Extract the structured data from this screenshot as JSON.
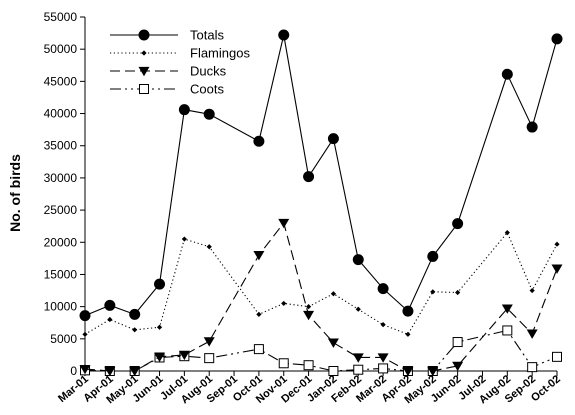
{
  "chart_data": {
    "type": "line",
    "title": "",
    "xlabel": "",
    "ylabel": "No. of birds",
    "ylim": [
      0,
      55000
    ],
    "yticks": [
      0,
      5000,
      10000,
      15000,
      20000,
      25000,
      30000,
      35000,
      40000,
      45000,
      50000,
      55000
    ],
    "grid": false,
    "legend": "top-left",
    "categories": [
      "Mar-01",
      "Apr-01",
      "May-01",
      "Jun-01",
      "Jul-01",
      "Aug-01",
      "Sep-01",
      "Oct-01",
      "Nov-01",
      "Dec-01",
      "Jan-02",
      "Feb-02",
      "Mar-02",
      "Apr-02",
      "May-02",
      "Jun-02",
      "Jul-02",
      "Aug-02",
      "Sep-02",
      "Oct-02"
    ],
    "series": [
      {
        "name": "Totals",
        "style": "solid",
        "marker": "filled-circle",
        "points": [
          [
            "Mar-01",
            8600
          ],
          [
            "Apr-01",
            10200
          ],
          [
            "May-01",
            8800
          ],
          [
            "Jun-01",
            13500
          ],
          [
            "Jul-01",
            40600
          ],
          [
            "Aug-01",
            39900
          ],
          [
            "Oct-01",
            35700
          ],
          [
            "Nov-01",
            52200
          ],
          [
            "Dec-01",
            30200
          ],
          [
            "Jan-02",
            36100
          ],
          [
            "Feb-02",
            17300
          ],
          [
            "Mar-02",
            12800
          ],
          [
            "Apr-02",
            9300
          ],
          [
            "May-02",
            17800
          ],
          [
            "Jun-02",
            22900
          ],
          [
            "Aug-02",
            46100
          ],
          [
            "Sep-02",
            37900
          ],
          [
            "Oct-02",
            51600
          ]
        ]
      },
      {
        "name": "Flamingos",
        "style": "dotted",
        "marker": "small-diamond",
        "points": [
          [
            "Mar-01",
            5700
          ],
          [
            "Apr-01",
            8000
          ],
          [
            "May-01",
            6400
          ],
          [
            "Jun-01",
            6800
          ],
          [
            "Jul-01",
            20500
          ],
          [
            "Aug-01",
            19300
          ],
          [
            "Oct-01",
            8800
          ],
          [
            "Nov-01",
            10500
          ],
          [
            "Dec-01",
            10000
          ],
          [
            "Jan-02",
            12000
          ],
          [
            "Feb-02",
            9600
          ],
          [
            "Mar-02",
            7200
          ],
          [
            "Apr-02",
            5700
          ],
          [
            "May-02",
            12300
          ],
          [
            "Jun-02",
            12200
          ],
          [
            "Aug-02",
            21500
          ],
          [
            "Sep-02",
            12500
          ],
          [
            "Oct-02",
            19700
          ]
        ]
      },
      {
        "name": "Ducks",
        "style": "dashed",
        "marker": "filled-triangle-down",
        "points": [
          [
            "Mar-01",
            300
          ],
          [
            "Apr-01",
            0
          ],
          [
            "May-01",
            0
          ],
          [
            "Jun-01",
            2200
          ],
          [
            "Jul-01",
            2500
          ],
          [
            "Aug-01",
            4600
          ],
          [
            "Oct-01",
            18000
          ],
          [
            "Nov-01",
            23000
          ],
          [
            "Dec-01",
            8700
          ],
          [
            "Jan-02",
            4400
          ],
          [
            "Feb-02",
            2100
          ],
          [
            "Mar-02",
            2100
          ],
          [
            "Apr-02",
            0
          ],
          [
            "May-02",
            0
          ],
          [
            "Jun-02",
            800
          ],
          [
            "Aug-02",
            9700
          ],
          [
            "Sep-02",
            5800
          ],
          [
            "Oct-02",
            15900
          ]
        ]
      },
      {
        "name": "Coots",
        "style": "dash-dot-dot",
        "marker": "open-square",
        "points": [
          [
            "Mar-01",
            100
          ],
          [
            "Apr-01",
            0
          ],
          [
            "May-01",
            0
          ],
          [
            "Jun-01",
            2100
          ],
          [
            "Jul-01",
            2300
          ],
          [
            "Aug-01",
            2000
          ],
          [
            "Oct-01",
            3400
          ],
          [
            "Nov-01",
            1200
          ],
          [
            "Dec-01",
            900
          ],
          [
            "Jan-02",
            0
          ],
          [
            "Feb-02",
            200
          ],
          [
            "Mar-02",
            400
          ],
          [
            "Apr-02",
            0
          ],
          [
            "May-02",
            0
          ],
          [
            "Jun-02",
            4500
          ],
          [
            "Aug-02",
            6300
          ],
          [
            "Sep-02",
            600
          ],
          [
            "Oct-02",
            2200
          ]
        ]
      }
    ]
  }
}
